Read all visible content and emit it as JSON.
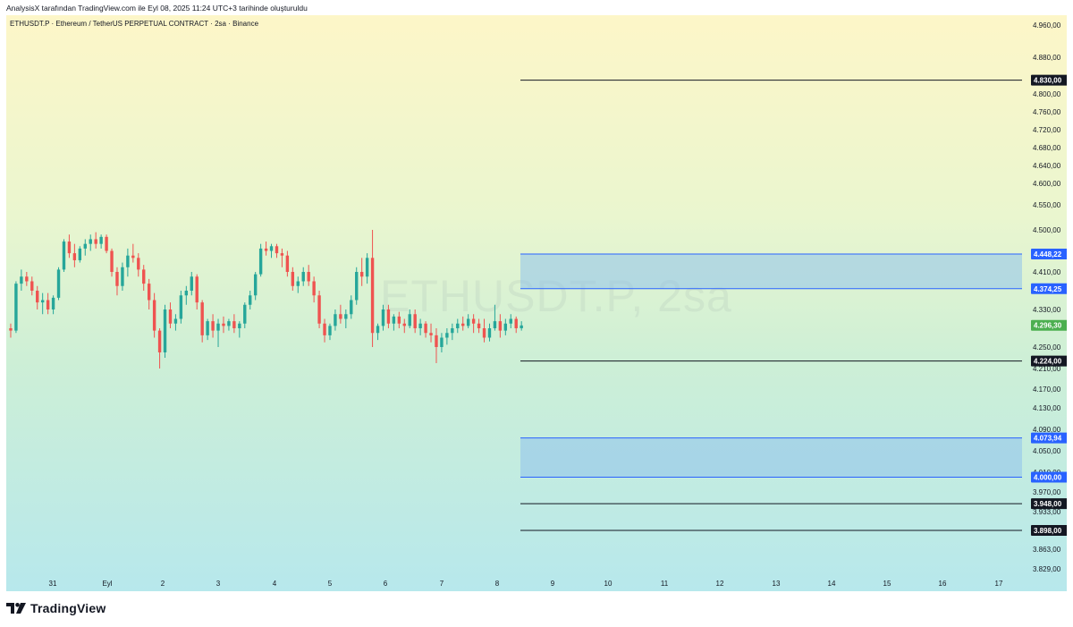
{
  "caption": "AnalysisX tarafından TradingView.com ile Eyl 08, 2025 11:24 UTC+3 tarihinde oluşturuldu",
  "symbol_header": "ETHUSDT.P · Ethereum / TetherUS PERPETUAL CONTRACT · 2sa · Binance",
  "watermark": "ETHUSDT.P, 2sa",
  "brand": "TradingView",
  "colors": {
    "up": "#26a69a",
    "down": "#ef5350",
    "zone_fill": "#90c3ec",
    "zone_line": "#2962ff",
    "level_line": "#131722",
    "price_badge": "#4caf50",
    "badge_black": "#131722",
    "badge_blue": "#2962ff"
  },
  "chart_data": {
    "type": "candlestick",
    "price_axis_ticks": [
      "4.960,00",
      "4.880,00",
      "4.800,00",
      "4.760,00",
      "4.720,00",
      "4.680,00",
      "4.640,00",
      "4.600,00",
      "4.550,00",
      "4.500,00",
      "4.410,00",
      "4.330,00",
      "4.250,00",
      "4.210,00",
      "4.170,00",
      "4.130,00",
      "4.090,00",
      "4.050,00",
      "4.010,00",
      "3.970,00",
      "3.933,00",
      "3.863,00",
      "3.829,00"
    ],
    "time_axis_ticks": [
      "31",
      "Eyl",
      "2",
      "3",
      "4",
      "5",
      "6",
      "7",
      "8",
      "9",
      "10",
      "11",
      "12",
      "13",
      "14",
      "15",
      "16",
      "17"
    ],
    "horizontal_levels": [
      {
        "value": 4830.0,
        "label": "4.830,00"
      },
      {
        "value": 4224.0,
        "label": "4.224,00"
      },
      {
        "value": 3948.0,
        "label": "3.948,00"
      },
      {
        "value": 3898.0,
        "label": "3.898,00"
      }
    ],
    "zones": [
      {
        "top": 4448.22,
        "bottom": 4374.25,
        "top_label": "4.448,22",
        "bottom_label": "4.374,25"
      },
      {
        "top": 4073.94,
        "bottom": 4000.0,
        "top_label": "4.073,94",
        "bottom_label": "4.000,00"
      }
    ],
    "last_price": {
      "value": 4296.3,
      "label": "4.296,30"
    },
    "candles": [
      [
        4290,
        4300,
        4270,
        4285
      ],
      [
        4285,
        4390,
        4280,
        4385
      ],
      [
        4385,
        4415,
        4370,
        4400
      ],
      [
        4400,
        4410,
        4380,
        4390
      ],
      [
        4390,
        4400,
        4360,
        4370
      ],
      [
        4370,
        4380,
        4330,
        4345
      ],
      [
        4345,
        4365,
        4320,
        4350
      ],
      [
        4350,
        4365,
        4320,
        4330
      ],
      [
        4330,
        4360,
        4320,
        4355
      ],
      [
        4355,
        4420,
        4350,
        4415
      ],
      [
        4415,
        4480,
        4410,
        4475
      ],
      [
        4475,
        4490,
        4440,
        4450
      ],
      [
        4450,
        4470,
        4420,
        4435
      ],
      [
        4435,
        4465,
        4430,
        4460
      ],
      [
        4460,
        4480,
        4445,
        4470
      ],
      [
        4470,
        4490,
        4455,
        4480
      ],
      [
        4480,
        4495,
        4460,
        4470
      ],
      [
        4470,
        4490,
        4460,
        4485
      ],
      [
        4485,
        4490,
        4450,
        4455
      ],
      [
        4455,
        4460,
        4400,
        4410
      ],
      [
        4410,
        4420,
        4360,
        4380
      ],
      [
        4380,
        4430,
        4370,
        4420
      ],
      [
        4420,
        4460,
        4400,
        4445
      ],
      [
        4445,
        4470,
        4430,
        4440
      ],
      [
        4440,
        4450,
        4400,
        4415
      ],
      [
        4415,
        4425,
        4370,
        4385
      ],
      [
        4385,
        4395,
        4330,
        4350
      ],
      [
        4350,
        4365,
        4270,
        4285
      ],
      [
        4285,
        4290,
        4210,
        4240
      ],
      [
        4240,
        4340,
        4230,
        4330
      ],
      [
        4330,
        4345,
        4290,
        4300
      ],
      [
        4300,
        4320,
        4285,
        4310
      ],
      [
        4310,
        4370,
        4300,
        4360
      ],
      [
        4360,
        4380,
        4340,
        4370
      ],
      [
        4370,
        4410,
        4360,
        4400
      ],
      [
        4400,
        4405,
        4330,
        4345
      ],
      [
        4345,
        4350,
        4260,
        4275
      ],
      [
        4275,
        4310,
        4265,
        4305
      ],
      [
        4305,
        4320,
        4270,
        4285
      ],
      [
        4285,
        4310,
        4250,
        4300
      ],
      [
        4300,
        4315,
        4280,
        4295
      ],
      [
        4295,
        4310,
        4285,
        4305
      ],
      [
        4305,
        4320,
        4280,
        4290
      ],
      [
        4290,
        4305,
        4270,
        4300
      ],
      [
        4300,
        4345,
        4290,
        4340
      ],
      [
        4340,
        4370,
        4330,
        4360
      ],
      [
        4360,
        4410,
        4350,
        4405
      ],
      [
        4405,
        4470,
        4400,
        4460
      ],
      [
        4460,
        4475,
        4445,
        4455
      ],
      [
        4455,
        4470,
        4440,
        4465
      ],
      [
        4465,
        4470,
        4440,
        4450
      ],
      [
        4450,
        4460,
        4420,
        4445
      ],
      [
        4445,
        4455,
        4400,
        4410
      ],
      [
        4410,
        4420,
        4370,
        4380
      ],
      [
        4380,
        4400,
        4365,
        4390
      ],
      [
        4390,
        4420,
        4380,
        4410
      ],
      [
        4410,
        4425,
        4380,
        4390
      ],
      [
        4390,
        4400,
        4345,
        4360
      ],
      [
        4360,
        4370,
        4290,
        4300
      ],
      [
        4300,
        4310,
        4260,
        4275
      ],
      [
        4275,
        4300,
        4265,
        4295
      ],
      [
        4295,
        4330,
        4285,
        4320
      ],
      [
        4320,
        4340,
        4300,
        4310
      ],
      [
        4310,
        4330,
        4290,
        4320
      ],
      [
        4320,
        4360,
        4310,
        4350
      ],
      [
        4350,
        4420,
        4340,
        4410
      ],
      [
        4410,
        4440,
        4380,
        4400
      ],
      [
        4400,
        4450,
        4385,
        4440
      ],
      [
        4440,
        4500,
        4250,
        4280
      ],
      [
        4280,
        4300,
        4265,
        4295
      ],
      [
        4295,
        4340,
        4285,
        4330
      ],
      [
        4330,
        4340,
        4290,
        4300
      ],
      [
        4300,
        4320,
        4285,
        4315
      ],
      [
        4315,
        4325,
        4290,
        4300
      ],
      [
        4300,
        4310,
        4280,
        4295
      ],
      [
        4295,
        4330,
        4290,
        4320
      ],
      [
        4320,
        4330,
        4280,
        4290
      ],
      [
        4290,
        4310,
        4275,
        4300
      ],
      [
        4300,
        4305,
        4270,
        4280
      ],
      [
        4280,
        4300,
        4260,
        4275
      ],
      [
        4275,
        4290,
        4220,
        4250
      ],
      [
        4250,
        4280,
        4240,
        4270
      ],
      [
        4270,
        4290,
        4255,
        4280
      ],
      [
        4280,
        4300,
        4265,
        4290
      ],
      [
        4290,
        4310,
        4280,
        4300
      ],
      [
        4300,
        4315,
        4285,
        4295
      ],
      [
        4295,
        4320,
        4290,
        4310
      ],
      [
        4310,
        4320,
        4280,
        4300
      ],
      [
        4300,
        4310,
        4280,
        4290
      ],
      [
        4290,
        4310,
        4260,
        4270
      ],
      [
        4270,
        4300,
        4262,
        4290
      ],
      [
        4290,
        4340,
        4285,
        4305
      ],
      [
        4305,
        4320,
        4270,
        4285
      ],
      [
        4285,
        4310,
        4275,
        4300
      ],
      [
        4300,
        4320,
        4290,
        4310
      ],
      [
        4310,
        4315,
        4280,
        4290
      ],
      [
        4290,
        4305,
        4285,
        4296
      ]
    ]
  }
}
